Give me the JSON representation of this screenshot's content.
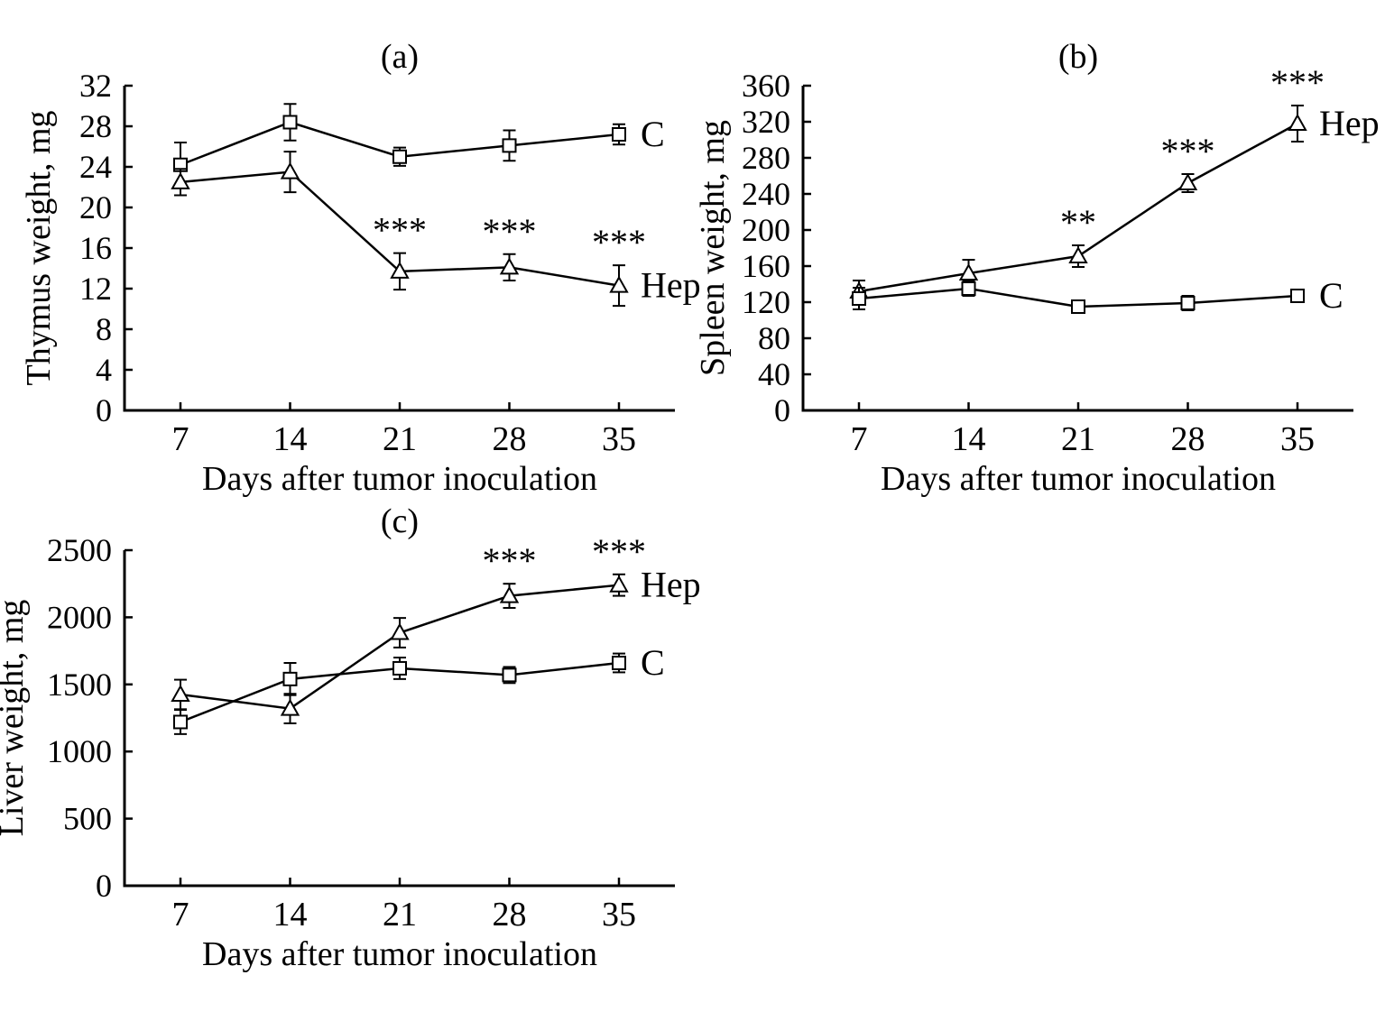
{
  "figure": {
    "background": "#ffffff",
    "text_color": "#000000",
    "line_color": "#000000",
    "marker_fill": "#ffffff"
  },
  "chart_data": [
    {
      "id": "a",
      "type": "line",
      "title": "(a)",
      "xlabel": "Days after tumor inoculation",
      "ylabel": "Thymus weight, mg",
      "x": [
        7,
        14,
        21,
        28,
        35
      ],
      "ylim": [
        0,
        32
      ],
      "yticks": [
        0,
        4,
        8,
        12,
        16,
        20,
        24,
        28,
        32
      ],
      "grid": false,
      "legend_position": "end-labels",
      "series": [
        {
          "name": "C",
          "marker": "square",
          "values": [
            24.2,
            28.4,
            25.0,
            26.1,
            27.2
          ],
          "errors": [
            2.2,
            1.8,
            0.9,
            1.5,
            1.0
          ],
          "sig": [
            "",
            "",
            "",
            "",
            ""
          ]
        },
        {
          "name": "Hep",
          "marker": "triangle",
          "values": [
            22.5,
            23.5,
            13.7,
            14.1,
            12.3
          ],
          "errors": [
            1.3,
            2.0,
            1.8,
            1.3,
            2.0
          ],
          "sig": [
            "",
            "",
            "***",
            "***",
            "***"
          ]
        }
      ]
    },
    {
      "id": "b",
      "type": "line",
      "title": "(b)",
      "xlabel": "Days after tumor inoculation",
      "ylabel": "Spleen weight, mg",
      "x": [
        7,
        14,
        21,
        28,
        35
      ],
      "ylim": [
        0,
        360
      ],
      "yticks": [
        0,
        40,
        80,
        120,
        160,
        200,
        240,
        280,
        320,
        360
      ],
      "grid": false,
      "legend_position": "end-labels",
      "series": [
        {
          "name": "Hep",
          "marker": "triangle",
          "values": [
            132,
            152,
            171,
            252,
            318
          ],
          "errors": [
            12,
            15,
            12,
            10,
            20
          ],
          "sig": [
            "",
            "",
            "**",
            "***",
            "***"
          ]
        },
        {
          "name": "C",
          "marker": "square",
          "values": [
            124,
            135,
            115,
            119,
            127
          ],
          "errors": [
            12,
            8,
            5,
            8,
            7
          ],
          "sig": [
            "",
            "",
            "",
            "",
            ""
          ]
        }
      ]
    },
    {
      "id": "c",
      "type": "line",
      "title": "(c)",
      "xlabel": "Days after tumor inoculation",
      "ylabel": "Liver weight, mg",
      "x": [
        7,
        14,
        21,
        28,
        35
      ],
      "ylim": [
        0,
        2500
      ],
      "yticks": [
        0,
        500,
        1000,
        1500,
        2000,
        2500
      ],
      "grid": false,
      "legend_position": "end-labels",
      "series": [
        {
          "name": "Hep",
          "marker": "triangle",
          "values": [
            1425,
            1320,
            1885,
            2160,
            2240
          ],
          "errors": [
            110,
            110,
            110,
            90,
            80
          ],
          "sig": [
            "",
            "",
            "",
            "***",
            "***"
          ]
        },
        {
          "name": "C",
          "marker": "square",
          "values": [
            1220,
            1540,
            1620,
            1570,
            1660
          ],
          "errors": [
            90,
            120,
            80,
            60,
            70
          ],
          "sig": [
            "",
            "",
            "",
            "",
            ""
          ]
        }
      ]
    }
  ]
}
